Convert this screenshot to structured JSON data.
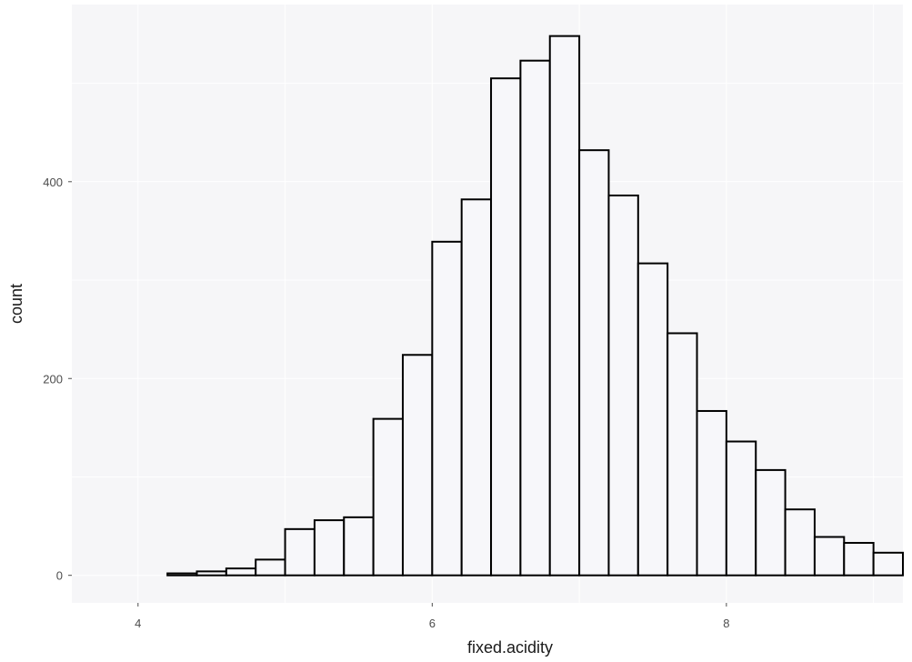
{
  "chart_data": {
    "type": "bar",
    "subtype": "histogram",
    "title": "",
    "xlabel": "fixed.acidity",
    "ylabel": "count",
    "bin_width": 0.2,
    "bins": [
      {
        "x0": 3.8,
        "x1": 4.0,
        "count": 0
      },
      {
        "x0": 4.0,
        "x1": 4.2,
        "count": 0
      },
      {
        "x0": 4.2,
        "x1": 4.4,
        "count": 2
      },
      {
        "x0": 4.4,
        "x1": 4.6,
        "count": 4
      },
      {
        "x0": 4.6,
        "x1": 4.8,
        "count": 7
      },
      {
        "x0": 4.8,
        "x1": 5.0,
        "count": 16
      },
      {
        "x0": 5.0,
        "x1": 5.2,
        "count": 47
      },
      {
        "x0": 5.2,
        "x1": 5.4,
        "count": 56
      },
      {
        "x0": 5.4,
        "x1": 5.6,
        "count": 59
      },
      {
        "x0": 5.6,
        "x1": 5.8,
        "count": 159
      },
      {
        "x0": 5.8,
        "x1": 6.0,
        "count": 224
      },
      {
        "x0": 6.0,
        "x1": 6.2,
        "count": 339
      },
      {
        "x0": 6.2,
        "x1": 6.4,
        "count": 382
      },
      {
        "x0": 6.4,
        "x1": 6.6,
        "count": 505
      },
      {
        "x0": 6.6,
        "x1": 6.8,
        "count": 523
      },
      {
        "x0": 6.8,
        "x1": 7.0,
        "count": 548
      },
      {
        "x0": 7.0,
        "x1": 7.2,
        "count": 432
      },
      {
        "x0": 7.2,
        "x1": 7.4,
        "count": 386
      },
      {
        "x0": 7.4,
        "x1": 7.6,
        "count": 317
      },
      {
        "x0": 7.6,
        "x1": 7.8,
        "count": 246
      },
      {
        "x0": 7.8,
        "x1": 8.0,
        "count": 167
      },
      {
        "x0": 8.0,
        "x1": 8.2,
        "count": 136
      },
      {
        "x0": 8.2,
        "x1": 8.4,
        "count": 107
      },
      {
        "x0": 8.4,
        "x1": 8.6,
        "count": 67
      },
      {
        "x0": 8.6,
        "x1": 8.8,
        "count": 39
      },
      {
        "x0": 8.8,
        "x1": 9.0,
        "count": 33
      },
      {
        "x0": 9.0,
        "x1": 9.2,
        "count": 23
      }
    ],
    "xlim": [
      3.55,
      9.2
    ],
    "ylim": [
      -28,
      580
    ],
    "xticks": [
      4,
      6,
      8
    ],
    "yticks": [
      0,
      200,
      400
    ],
    "grid": true,
    "legend": "none",
    "colors": {
      "panel_background": "#f6f6f8",
      "bar_fill": "#f7f7fa",
      "bar_outline": "#000000",
      "grid": "#ffffff"
    }
  }
}
